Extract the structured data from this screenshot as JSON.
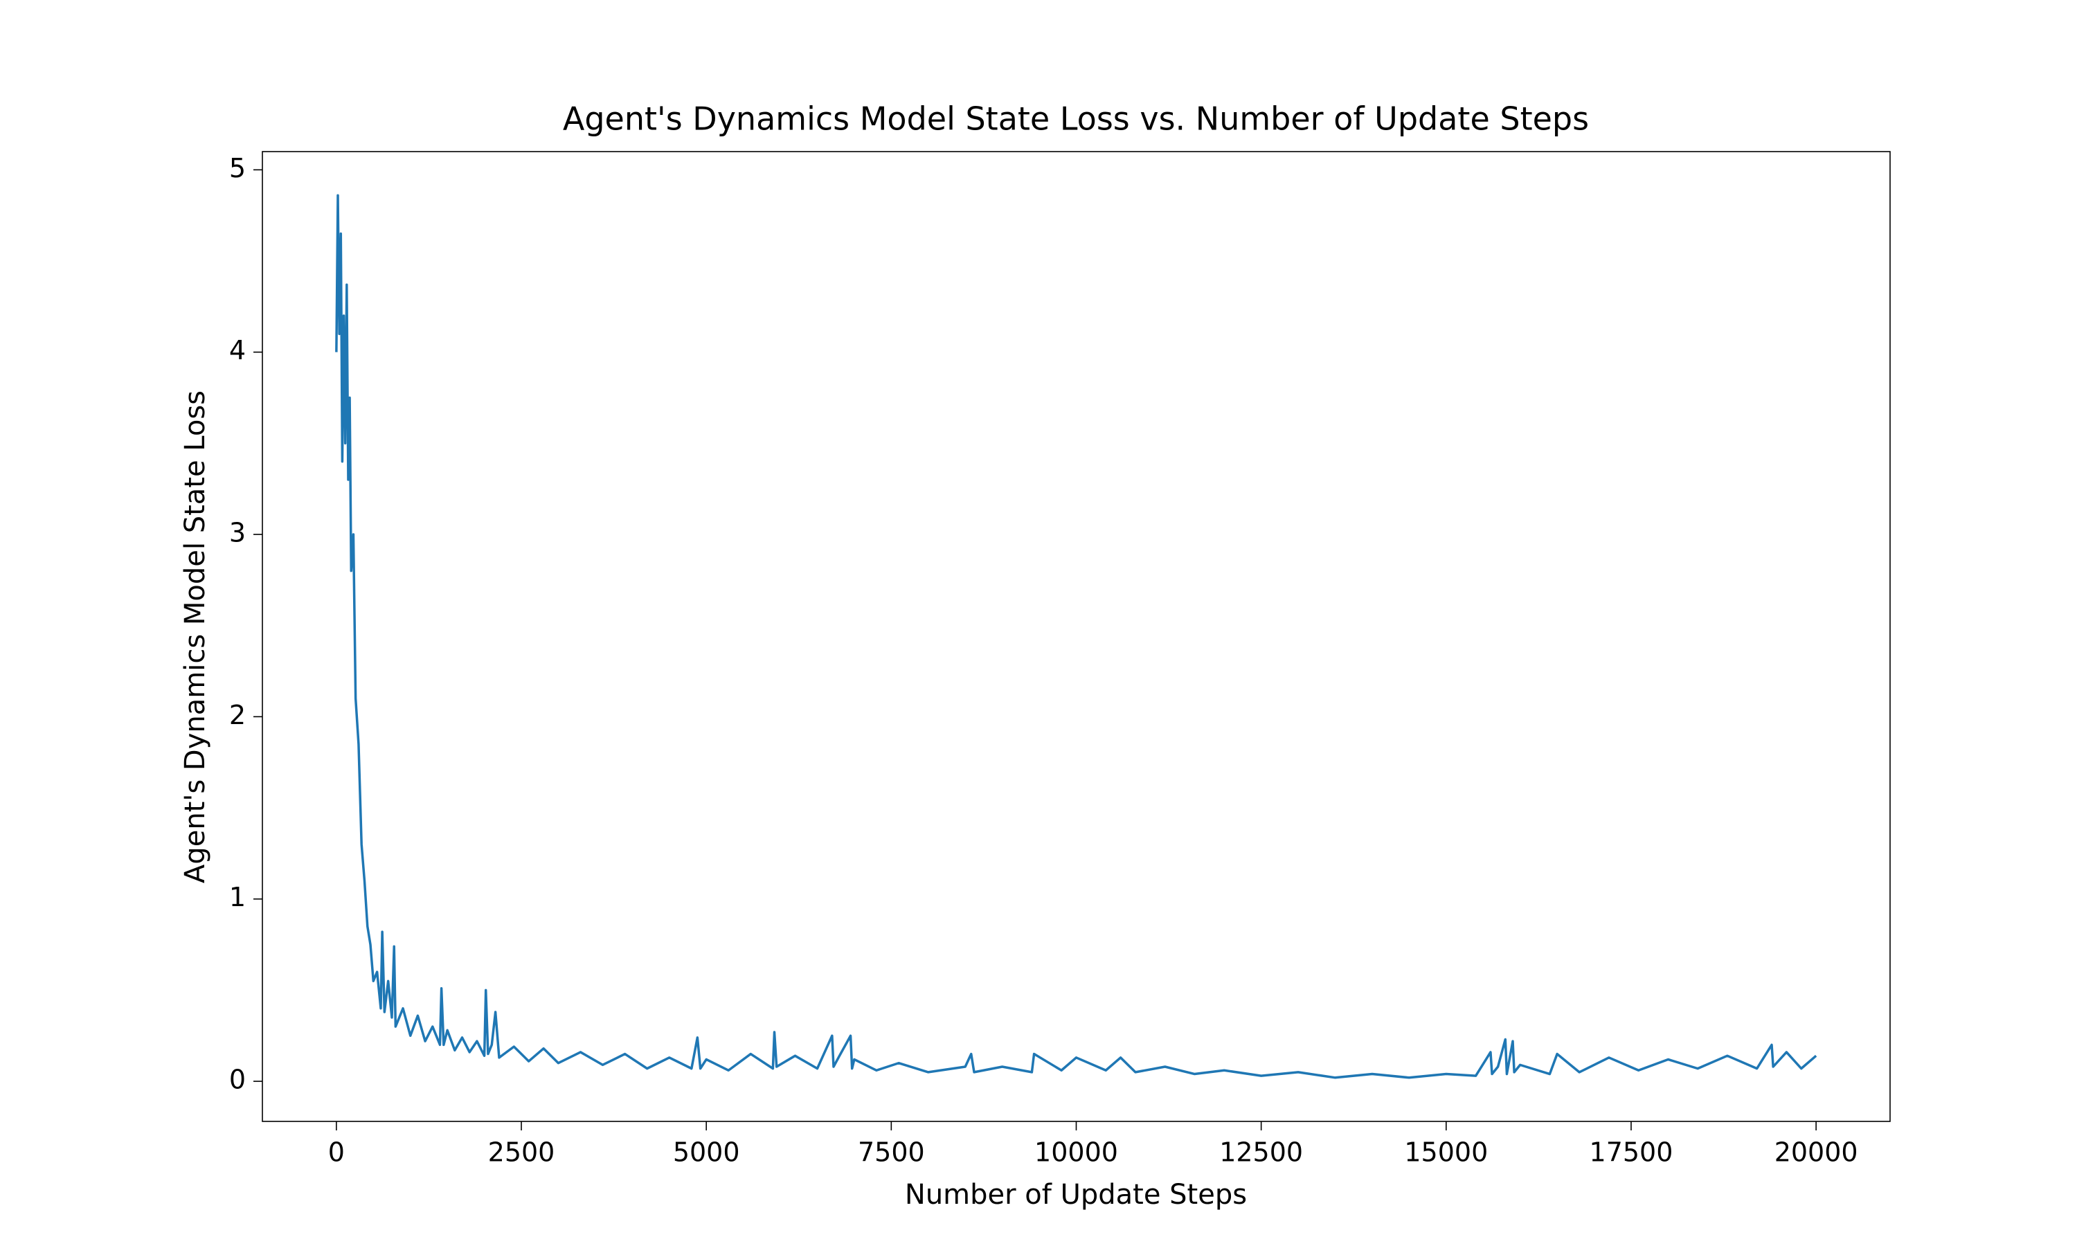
{
  "chart_data": {
    "type": "line",
    "title": "Agent's Dynamics Model State Loss vs. Number of Update Steps",
    "x_label": "Number of Update Steps",
    "y_label": "Agent's Dynamics Model State Loss",
    "x": [
      0,
      20,
      40,
      60,
      80,
      100,
      120,
      140,
      160,
      180,
      200,
      230,
      260,
      300,
      340,
      380,
      420,
      460,
      500,
      550,
      600,
      620,
      650,
      700,
      750,
      780,
      800,
      900,
      1000,
      1100,
      1200,
      1300,
      1400,
      1420,
      1450,
      1500,
      1600,
      1700,
      1800,
      1900,
      2000,
      2020,
      2050,
      2100,
      2150,
      2200,
      2400,
      2600,
      2800,
      3000,
      3300,
      3600,
      3900,
      4200,
      4500,
      4800,
      4880,
      4920,
      5000,
      5300,
      5600,
      5900,
      5920,
      5950,
      6200,
      6500,
      6700,
      6720,
      6800,
      6950,
      6970,
      7000,
      7300,
      7600,
      8000,
      8500,
      8580,
      8620,
      9000,
      9400,
      9430,
      9800,
      10000,
      10400,
      10600,
      10800,
      11200,
      11600,
      12000,
      12500,
      13000,
      13500,
      14000,
      14500,
      15000,
      15400,
      15600,
      15620,
      15700,
      15800,
      15820,
      15900,
      15920,
      16000,
      16400,
      16500,
      16800,
      17200,
      17600,
      18000,
      18400,
      18800,
      19200,
      19400,
      19420,
      19600,
      19800,
      20000
    ],
    "series": [
      {
        "name": "State Loss",
        "color": "#1f77b4",
        "values": [
          4.0,
          4.86,
          4.1,
          4.65,
          3.4,
          4.2,
          3.5,
          4.37,
          3.3,
          3.75,
          2.8,
          3.0,
          2.1,
          1.85,
          1.3,
          1.1,
          0.85,
          0.75,
          0.55,
          0.6,
          0.4,
          0.82,
          0.38,
          0.55,
          0.35,
          0.74,
          0.3,
          0.4,
          0.25,
          0.36,
          0.22,
          0.3,
          0.2,
          0.51,
          0.2,
          0.28,
          0.17,
          0.24,
          0.16,
          0.22,
          0.14,
          0.5,
          0.15,
          0.2,
          0.38,
          0.13,
          0.19,
          0.11,
          0.18,
          0.1,
          0.16,
          0.09,
          0.15,
          0.07,
          0.13,
          0.07,
          0.24,
          0.07,
          0.12,
          0.06,
          0.15,
          0.07,
          0.27,
          0.08,
          0.14,
          0.07,
          0.25,
          0.08,
          0.14,
          0.25,
          0.07,
          0.12,
          0.06,
          0.1,
          0.05,
          0.08,
          0.15,
          0.05,
          0.08,
          0.05,
          0.15,
          0.06,
          0.13,
          0.06,
          0.13,
          0.05,
          0.08,
          0.04,
          0.06,
          0.03,
          0.05,
          0.02,
          0.04,
          0.02,
          0.04,
          0.03,
          0.16,
          0.04,
          0.08,
          0.23,
          0.04,
          0.22,
          0.05,
          0.09,
          0.04,
          0.15,
          0.05,
          0.13,
          0.06,
          0.12,
          0.07,
          0.14,
          0.07,
          0.2,
          0.08,
          0.16,
          0.07,
          0.14
        ]
      }
    ],
    "xlim": [
      -1000,
      21000
    ],
    "xticks": [
      0,
      2500,
      5000,
      7500,
      10000,
      12500,
      15000,
      17500,
      20000
    ],
    "ylim": [
      -0.22,
      5.1
    ],
    "yticks": [
      0,
      1,
      2,
      3,
      4,
      5
    ],
    "grid": false
  }
}
